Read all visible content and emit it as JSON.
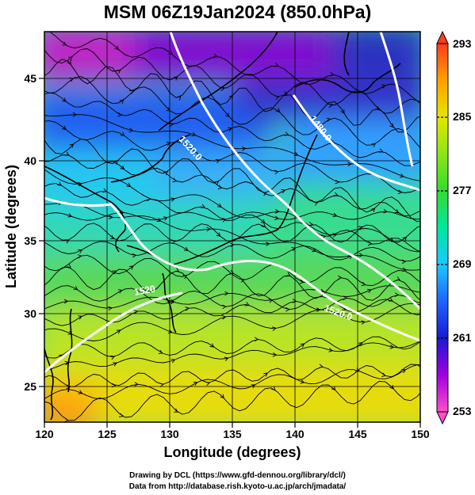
{
  "title": "MSM 06Z19Jan2024 (850.0hPa)",
  "chart_data": {
    "type": "heatmap",
    "title": "MSM 06Z19Jan2024 (850.0hPa)",
    "xlabel": "Longitude (degrees)",
    "ylabel": "Latitude  (degrees)",
    "xlim": [
      120,
      150
    ],
    "ylim": [
      22.5,
      47.6
    ],
    "x_ticks": [
      "120",
      "125",
      "130",
      "135",
      "140",
      "145",
      "150"
    ],
    "y_ticks": [
      "25",
      "30",
      "35",
      "40",
      "45"
    ],
    "grid": true,
    "colorbar": {
      "min": 253,
      "max": 293,
      "tick_labels": [
        "293",
        "285",
        "277",
        "269",
        "261",
        "253"
      ]
    },
    "contours": [
      {
        "label": "1480.0"
      },
      {
        "label": "1520.0"
      },
      {
        "label": "1520.0"
      },
      {
        "label": "1520"
      }
    ]
  },
  "credits": {
    "line1": "Drawing by DCL (https://www.gfd-dennou.org/library/dcl/)",
    "line2": "Data from http://database.rish.kyoto-u.ac.jp/arch/jmadata/"
  }
}
